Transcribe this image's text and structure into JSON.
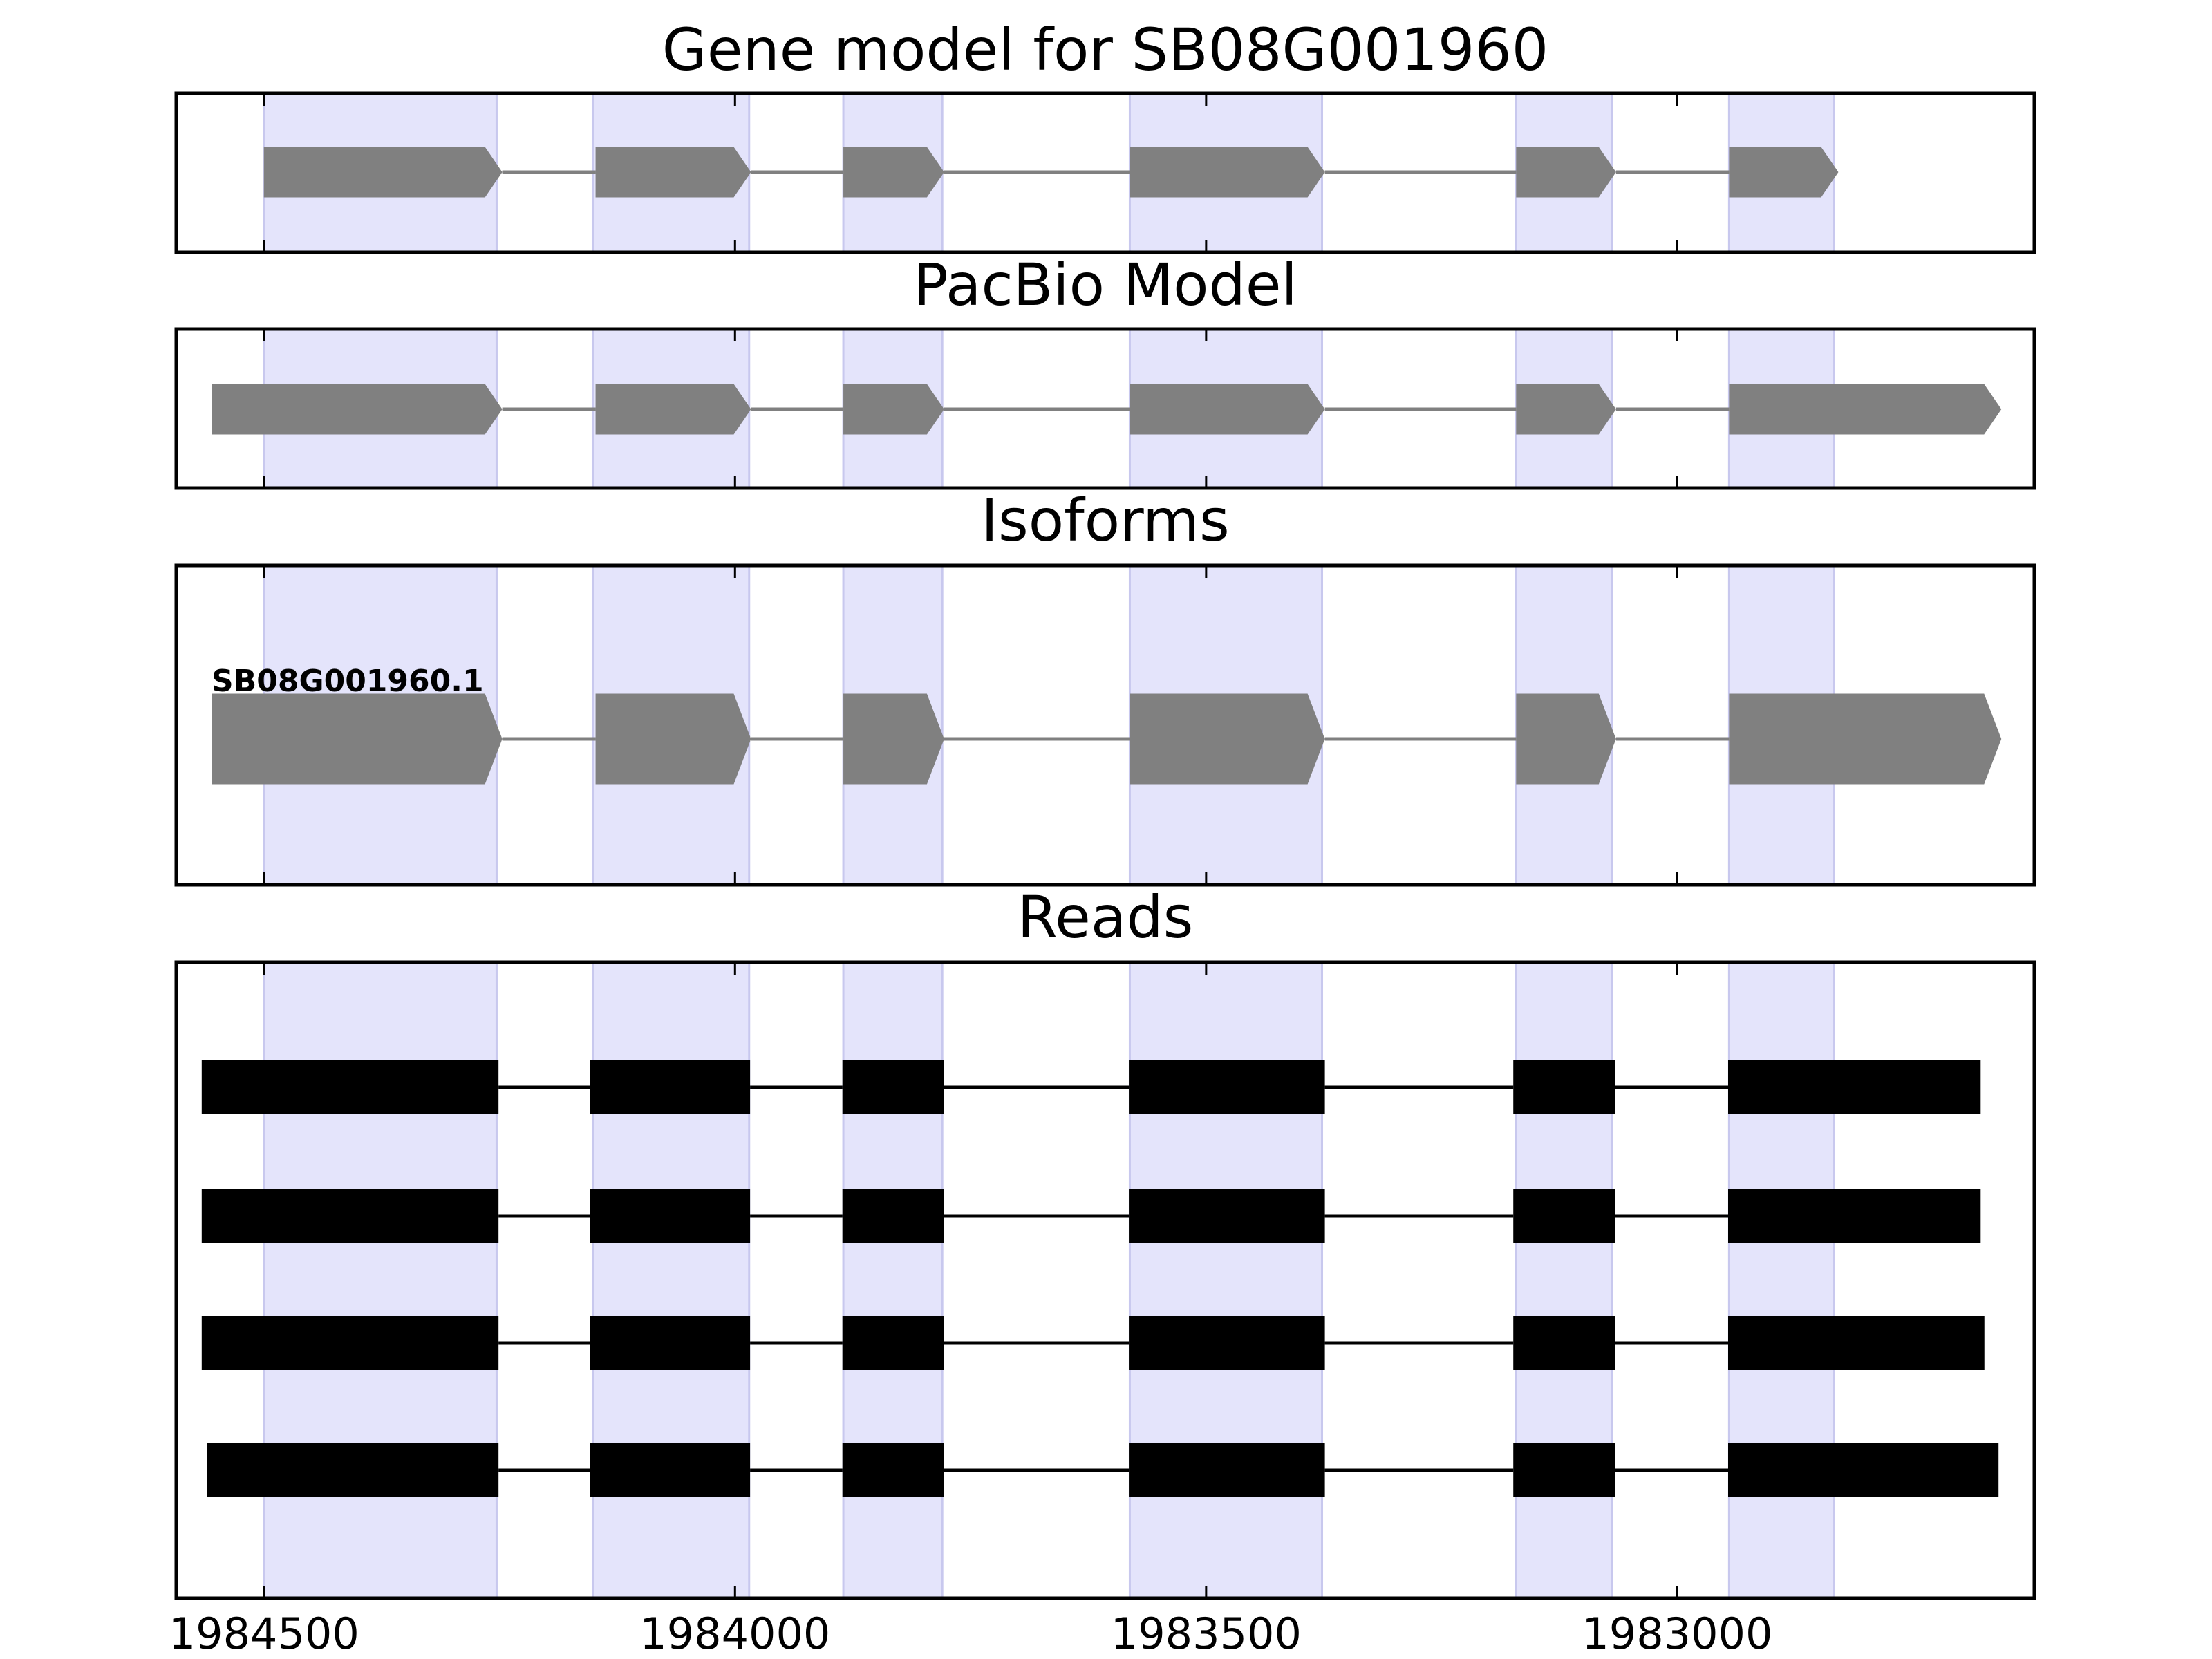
{
  "chart_data": {
    "type": "gene-track",
    "xlim": [
      1984593,
      1982621
    ],
    "xticks": [
      1984500,
      1984000,
      1983500,
      1983000
    ],
    "highlight_color": "#e4e4fb",
    "highlights": [
      [
        1984500,
        1984253
      ],
      [
        1984151,
        1983985
      ],
      [
        1983885,
        1983780
      ],
      [
        1983581,
        1983377
      ],
      [
        1983171,
        1983069
      ],
      [
        1982945,
        1982834
      ]
    ],
    "panels": [
      {
        "title": "Gene model for SB08G001960",
        "style": "arrow",
        "color": "#808080",
        "features": [
          {
            "exons": [
              [
                1984500,
                1984247
              ],
              [
                1984148,
                1983983
              ],
              [
                1983885,
                1983778
              ],
              [
                1983581,
                1983374
              ],
              [
                1983171,
                1983065
              ],
              [
                1982945,
                1982829
              ]
            ]
          }
        ]
      },
      {
        "title": "PacBio Model",
        "style": "arrow",
        "color": "#808080",
        "features": [
          {
            "exons": [
              [
                1984555,
                1984247
              ],
              [
                1984148,
                1983983
              ],
              [
                1983885,
                1983778
              ],
              [
                1983581,
                1983374
              ],
              [
                1983171,
                1983065
              ],
              [
                1982945,
                1982656
              ]
            ]
          }
        ]
      },
      {
        "title": "Isoforms",
        "style": "arrow",
        "color": "#808080",
        "features": [
          {
            "label": "SB08G001960.1",
            "exons": [
              [
                1984555,
                1984247
              ],
              [
                1984148,
                1983983
              ],
              [
                1983885,
                1983778
              ],
              [
                1983581,
                1983374
              ],
              [
                1983171,
                1983065
              ],
              [
                1982945,
                1982656
              ]
            ]
          }
        ]
      },
      {
        "title": "Reads",
        "style": "block",
        "color": "#000000",
        "features": [
          {
            "exons": [
              [
                1984566,
                1984251
              ],
              [
                1984154,
                1983984
              ],
              [
                1983886,
                1983778
              ],
              [
                1983582,
                1983374
              ],
              [
                1983174,
                1983066
              ],
              [
                1982946,
                1982678
              ]
            ]
          },
          {
            "exons": [
              [
                1984566,
                1984251
              ],
              [
                1984154,
                1983984
              ],
              [
                1983886,
                1983778
              ],
              [
                1983582,
                1983374
              ],
              [
                1983174,
                1983066
              ],
              [
                1982946,
                1982678
              ]
            ]
          },
          {
            "exons": [
              [
                1984566,
                1984251
              ],
              [
                1984154,
                1983984
              ],
              [
                1983886,
                1983778
              ],
              [
                1983582,
                1983374
              ],
              [
                1983174,
                1983066
              ],
              [
                1982946,
                1982674
              ]
            ]
          },
          {
            "exons": [
              [
                1984560,
                1984251
              ],
              [
                1984154,
                1983984
              ],
              [
                1983886,
                1983778
              ],
              [
                1983582,
                1983374
              ],
              [
                1983174,
                1983066
              ],
              [
                1982946,
                1982659
              ]
            ]
          }
        ]
      }
    ]
  }
}
